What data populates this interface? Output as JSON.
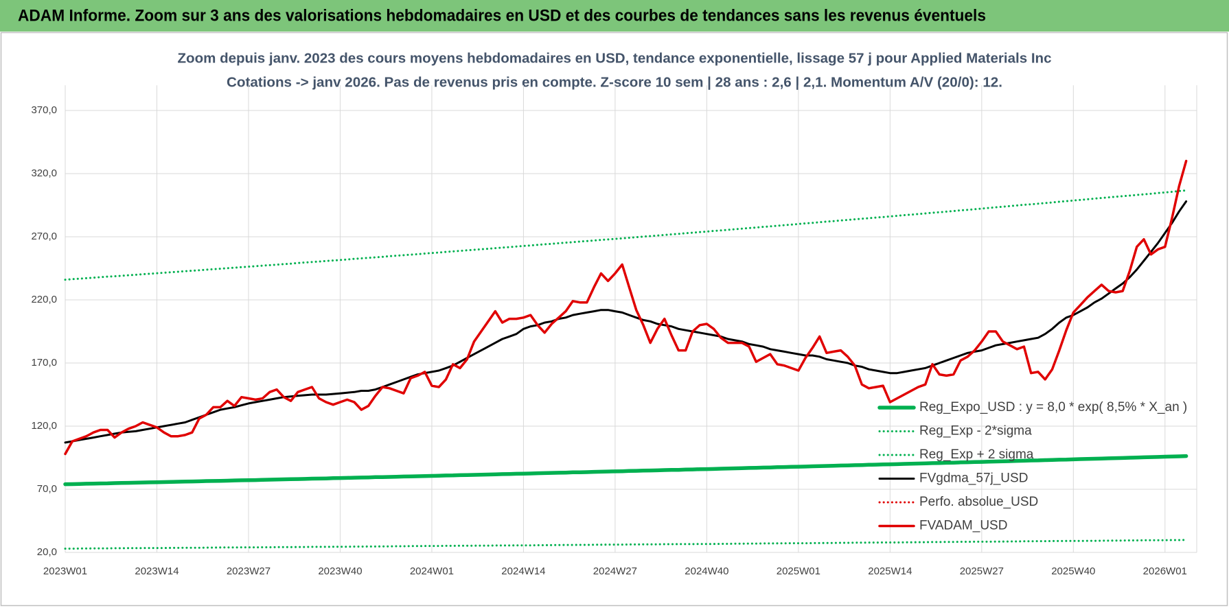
{
  "header": {
    "title": "ADAM Informe. Zoom sur 3 ans des valorisations hebdomadaires en USD et des courbes de tendances sans les revenus éventuels"
  },
  "chart_data": {
    "type": "line",
    "title": "Zoom depuis janv. 2023 des cours moyens hebdomadaires en USD, tendance exponentielle, lissage 57 j pour Applied Materials Inc",
    "subtitle": "Cotations -> janv 2026. Pas de revenus pris en compte. Z-score 10 sem  | 28 ans : 2,6 | 2,1. Momentum A/V (20/0): 12.",
    "categories": [
      "2023W01",
      null,
      null,
      null,
      null,
      null,
      null,
      null,
      null,
      null,
      null,
      null,
      null,
      "2023W14",
      null,
      null,
      null,
      null,
      null,
      null,
      null,
      null,
      null,
      null,
      null,
      null,
      "2023W27",
      null,
      null,
      null,
      null,
      null,
      null,
      null,
      null,
      null,
      null,
      null,
      null,
      "2023W40",
      null,
      null,
      null,
      null,
      null,
      null,
      null,
      null,
      null,
      null,
      null,
      null,
      "2024W01",
      null,
      null,
      null,
      null,
      null,
      null,
      null,
      null,
      null,
      null,
      null,
      null,
      "2024W14",
      null,
      null,
      null,
      null,
      null,
      null,
      null,
      null,
      null,
      null,
      null,
      null,
      "2024W27",
      null,
      null,
      null,
      null,
      null,
      null,
      null,
      null,
      null,
      null,
      null,
      null,
      "2024W40",
      null,
      null,
      null,
      null,
      null,
      null,
      null,
      null,
      null,
      null,
      null,
      null,
      "2025W01",
      null,
      null,
      null,
      null,
      null,
      null,
      null,
      null,
      null,
      null,
      null,
      null,
      "2025W14",
      null,
      null,
      null,
      null,
      null,
      null,
      null,
      null,
      null,
      null,
      null,
      null,
      "2025W27",
      null,
      null,
      null,
      null,
      null,
      null,
      null,
      null,
      null,
      null,
      null,
      null,
      "2025W40",
      null,
      null,
      null,
      null,
      null,
      null,
      null,
      null,
      null,
      null,
      null,
      null,
      "2026W01",
      null,
      null,
      null
    ],
    "ylim": [
      20,
      390
    ],
    "yticks": [
      {
        "value": 20,
        "label": "20,0"
      },
      {
        "value": 70,
        "label": "70,0"
      },
      {
        "value": 120,
        "label": "120,0"
      },
      {
        "value": 170,
        "label": "170,0"
      },
      {
        "value": 220,
        "label": "220,0"
      },
      {
        "value": 270,
        "label": "270,0"
      },
      {
        "value": 320,
        "label": "320,0"
      },
      {
        "value": 370,
        "label": "370,0"
      }
    ],
    "grid": true,
    "legend": "lower right",
    "series": [
      {
        "name": "Reg_Expo_USD : y = 8,0 * exp( 8,5% *  X_an )",
        "color": "#00b050",
        "style": "solid",
        "values": [
          74.0,
          74.1,
          74.2,
          74.4,
          74.5,
          74.6,
          74.7,
          74.9,
          75.0,
          75.1,
          75.2,
          75.4,
          75.5,
          75.6,
          75.7,
          75.8,
          76.0,
          76.1,
          76.2,
          76.3,
          76.5,
          76.6,
          76.7,
          76.8,
          77.0,
          77.1,
          77.2,
          77.3,
          77.5,
          77.6,
          77.7,
          77.9,
          78.0,
          78.1,
          78.2,
          78.4,
          78.5,
          78.6,
          78.8,
          78.9,
          79.0,
          79.2,
          79.3,
          79.4,
          79.6,
          79.7,
          79.8,
          79.9,
          80.1,
          80.2,
          80.3,
          80.5,
          80.6,
          80.7,
          80.9,
          81.0,
          81.2,
          81.3,
          81.4,
          81.6,
          81.7,
          81.8,
          82.0,
          82.1,
          82.3,
          82.4,
          82.5,
          82.7,
          82.8,
          83.0,
          83.1,
          83.2,
          83.4,
          83.5,
          83.6,
          83.8,
          83.9,
          84.1,
          84.2,
          84.3,
          84.5,
          84.6,
          84.8,
          84.9,
          85.0,
          85.2,
          85.3,
          85.4,
          85.6,
          85.7,
          85.9,
          86.0,
          86.1,
          86.3,
          86.4,
          86.6,
          86.7,
          86.9,
          87.0,
          87.2,
          87.3,
          87.5,
          87.6,
          87.8,
          87.9,
          88.0,
          88.2,
          88.3,
          88.5,
          88.6,
          88.8,
          88.9,
          89.1,
          89.2,
          89.4,
          89.5,
          89.7,
          89.8,
          89.9,
          90.1,
          90.2,
          90.4,
          90.5,
          90.7,
          90.8,
          91.0,
          91.1,
          91.3,
          91.4,
          91.6,
          91.7,
          91.9,
          92.0,
          92.2,
          92.3,
          92.5,
          92.6,
          92.8,
          92.9,
          93.1,
          93.2,
          93.4,
          93.5,
          93.7,
          93.9,
          94.0,
          94.2,
          94.3,
          94.5,
          94.7,
          94.8,
          95.0,
          95.1,
          95.3,
          95.5,
          95.6,
          95.8,
          95.9,
          96.1,
          96.3
        ]
      },
      {
        "name": "Reg_Exp - 2*sigma",
        "color": "#00b050",
        "style": "dotted",
        "values": [
          23.0,
          23.0,
          23.1,
          23.1,
          23.2,
          23.2,
          23.2,
          23.3,
          23.3,
          23.4,
          23.4,
          23.4,
          23.5,
          23.5,
          23.5,
          23.6,
          23.6,
          23.7,
          23.7,
          23.7,
          23.8,
          23.8,
          23.9,
          23.9,
          23.9,
          24.0,
          24.0,
          24.0,
          24.1,
          24.1,
          24.2,
          24.2,
          24.2,
          24.3,
          24.3,
          24.4,
          24.4,
          24.4,
          24.5,
          24.5,
          24.5,
          24.6,
          24.6,
          24.7,
          24.7,
          24.8,
          24.8,
          24.9,
          24.9,
          25.0,
          25.0,
          25.1,
          25.1,
          25.1,
          25.2,
          25.2,
          25.3,
          25.3,
          25.3,
          25.4,
          25.4,
          25.5,
          25.5,
          25.5,
          25.6,
          25.6,
          25.6,
          25.7,
          25.7,
          25.8,
          25.8,
          25.9,
          25.9,
          26.0,
          26.0,
          26.1,
          26.1,
          26.2,
          26.2,
          26.2,
          26.3,
          26.3,
          26.4,
          26.4,
          26.4,
          26.5,
          26.5,
          26.6,
          26.6,
          26.6,
          26.7,
          26.7,
          26.7,
          26.8,
          26.8,
          26.9,
          26.9,
          27.0,
          27.0,
          27.1,
          27.1,
          27.2,
          27.2,
          27.3,
          27.3,
          27.3,
          27.4,
          27.4,
          27.5,
          27.5,
          27.6,
          27.6,
          27.7,
          27.7,
          27.8,
          27.8,
          27.9,
          27.9,
          27.9,
          28.0,
          28.0,
          28.1,
          28.1,
          28.2,
          28.2,
          28.3,
          28.3,
          28.4,
          28.4,
          28.5,
          28.5,
          28.5,
          28.6,
          28.6,
          28.7,
          28.7,
          28.8,
          28.8,
          28.9,
          28.9,
          29.0,
          29.0,
          29.1,
          29.1,
          29.1,
          29.2,
          29.2,
          29.3,
          29.3,
          29.4,
          29.4,
          29.5,
          29.5,
          29.6,
          29.6,
          29.7,
          29.7,
          29.8,
          29.8,
          29.9
        ]
      },
      {
        "name": "Reg_Exp + 2 sigma",
        "color": "#00b050",
        "style": "dotted",
        "values": [
          236.0,
          236.4,
          236.8,
          237.2,
          237.6,
          238.0,
          238.4,
          238.7,
          239.1,
          239.5,
          239.9,
          240.3,
          240.7,
          241.1,
          241.5,
          241.9,
          242.3,
          242.7,
          243.1,
          243.5,
          243.9,
          244.3,
          244.7,
          245.1,
          245.5,
          245.9,
          246.3,
          246.7,
          247.1,
          247.5,
          247.9,
          248.3,
          248.7,
          249.2,
          249.6,
          250.0,
          250.4,
          250.8,
          251.2,
          251.6,
          252.0,
          252.5,
          252.9,
          253.3,
          253.7,
          254.1,
          254.6,
          255.0,
          255.4,
          255.8,
          256.2,
          256.7,
          257.1,
          257.5,
          258.0,
          258.4,
          258.8,
          259.3,
          259.7,
          260.1,
          260.5,
          261.0,
          261.4,
          261.8,
          262.3,
          262.7,
          263.1,
          263.6,
          264.0,
          264.4,
          264.9,
          265.3,
          265.7,
          266.2,
          266.6,
          267.0,
          267.5,
          267.9,
          268.3,
          268.7,
          269.2,
          269.6,
          270.1,
          270.5,
          271.0,
          271.4,
          271.9,
          272.3,
          272.8,
          273.2,
          273.7,
          274.1,
          274.6,
          275.0,
          275.5,
          276.0,
          276.4,
          276.9,
          277.3,
          277.8,
          278.2,
          278.7,
          279.2,
          279.6,
          280.1,
          280.6,
          281.0,
          281.5,
          282.0,
          282.4,
          282.9,
          283.3,
          283.8,
          284.3,
          284.7,
          285.2,
          285.6,
          286.1,
          286.6,
          287.1,
          287.5,
          288.0,
          288.5,
          289.0,
          289.4,
          289.9,
          290.4,
          290.9,
          291.3,
          291.8,
          292.3,
          292.8,
          293.3,
          293.8,
          294.3,
          294.8,
          295.3,
          295.7,
          296.2,
          296.7,
          297.2,
          297.7,
          298.2,
          298.7,
          299.2,
          299.7,
          300.2,
          300.7,
          301.2,
          301.7,
          302.1,
          302.6,
          303.1,
          303.6,
          304.1,
          304.6,
          305.1,
          305.6,
          306.2,
          306.7
        ]
      },
      {
        "name": "FVgdma_57j_USD",
        "color": "#000000",
        "style": "solid",
        "values": [
          107,
          108,
          109,
          110,
          111,
          112,
          113,
          114,
          115,
          115.5,
          116,
          117,
          118,
          119,
          120,
          121,
          122,
          123,
          125,
          127,
          129,
          131,
          133,
          134,
          135,
          136.5,
          138,
          139,
          140,
          141,
          142,
          143,
          143.5,
          144,
          144.5,
          145,
          145,
          145,
          145.5,
          146,
          146.5,
          147,
          148,
          148,
          149,
          151,
          153,
          155,
          157,
          159,
          161,
          162,
          163,
          164,
          166,
          168,
          171,
          174,
          177,
          180,
          183,
          186,
          189,
          191,
          193,
          197,
          199,
          200,
          202,
          203,
          205,
          206,
          208,
          209,
          210,
          211,
          212,
          212,
          211,
          210,
          208,
          206,
          204,
          203,
          201,
          200,
          199,
          197,
          196,
          195,
          194,
          193,
          192,
          191,
          189,
          188,
          187,
          185,
          184,
          183,
          181,
          180,
          179,
          178,
          177,
          176,
          176,
          175,
          173,
          172,
          171,
          170,
          168,
          167,
          165,
          164,
          163,
          162,
          162,
          163,
          164,
          165,
          166,
          168,
          170,
          172,
          174,
          176,
          178,
          179,
          180,
          182,
          184,
          185,
          186,
          187,
          188,
          189,
          190,
          193,
          197,
          202,
          206,
          208,
          211,
          214,
          218,
          221,
          225,
          229,
          233,
          238,
          244,
          251,
          258,
          265,
          273,
          281,
          290,
          298
        ]
      },
      {
        "name": "Perfo. absolue_USD",
        "color": "#e00000",
        "style": "dotted",
        "values": [
          null,
          null,
          null,
          null,
          null,
          null,
          null,
          null,
          null,
          null,
          null,
          null,
          null,
          null,
          null,
          null,
          null,
          null,
          null,
          null,
          null,
          null,
          null,
          null,
          null,
          null,
          null,
          null,
          null,
          null,
          null,
          null,
          null,
          null,
          null,
          null,
          null,
          null,
          null,
          null,
          null,
          null,
          null,
          null,
          null,
          null,
          null,
          null,
          null,
          null,
          null,
          null,
          null,
          null,
          null,
          null,
          null,
          null,
          null,
          null,
          null,
          null,
          null,
          null,
          null,
          null,
          null,
          null,
          null,
          null,
          null,
          null,
          null,
          null,
          null,
          null,
          null,
          null,
          null,
          null,
          null,
          null,
          null,
          null,
          null,
          null,
          null,
          null,
          null,
          null,
          null,
          null,
          null,
          null,
          null,
          null,
          null,
          null,
          null,
          null,
          null,
          null,
          null,
          null,
          null,
          null,
          null,
          null,
          null,
          null,
          null,
          null,
          null,
          null,
          null,
          null,
          null,
          null,
          null,
          null,
          null,
          null,
          null,
          null,
          null,
          null,
          null,
          null,
          null,
          null,
          null,
          null,
          null,
          null,
          null,
          null,
          null,
          null,
          null,
          null,
          null,
          null,
          null,
          null,
          null,
          null,
          null,
          null,
          null,
          null,
          null,
          null,
          null,
          null,
          null,
          null,
          null,
          null,
          null,
          null
        ]
      },
      {
        "name": "FVADAM_USD",
        "color": "#e00000",
        "style": "solid",
        "values": [
          98,
          108,
          110,
          112,
          115,
          117,
          117,
          111,
          115,
          118,
          120,
          123,
          121,
          119,
          115,
          112,
          112,
          113,
          115,
          126,
          129,
          135,
          135,
          140,
          136,
          143,
          142,
          141,
          142,
          147,
          149,
          143,
          140,
          147,
          149,
          151,
          142,
          139,
          137,
          139,
          141,
          139,
          133,
          136,
          144,
          151,
          150,
          148,
          146,
          158,
          160,
          163,
          152,
          151,
          157,
          169,
          166,
          173,
          187,
          195,
          203,
          211,
          202,
          205,
          205,
          206,
          208,
          200,
          194,
          201,
          206,
          211,
          219,
          218,
          218,
          230,
          241,
          235,
          241,
          248,
          230,
          212,
          200,
          186,
          197,
          205,
          192,
          180,
          180,
          195,
          200,
          201,
          197,
          190,
          186,
          186,
          186,
          183,
          171,
          174,
          177,
          169,
          168,
          166,
          164,
          174,
          182,
          191,
          178,
          179,
          180,
          175,
          168,
          153,
          150,
          151,
          152,
          139,
          142,
          145,
          148,
          151,
          153,
          169,
          161,
          160,
          161,
          172,
          175,
          180,
          187,
          195,
          195,
          187,
          184,
          181,
          183,
          162,
          163,
          157,
          165,
          180,
          196,
          210,
          216,
          222,
          227,
          232,
          227,
          226,
          227,
          243,
          262,
          268,
          256,
          260,
          262,
          285,
          310,
          330
        ]
      }
    ]
  }
}
